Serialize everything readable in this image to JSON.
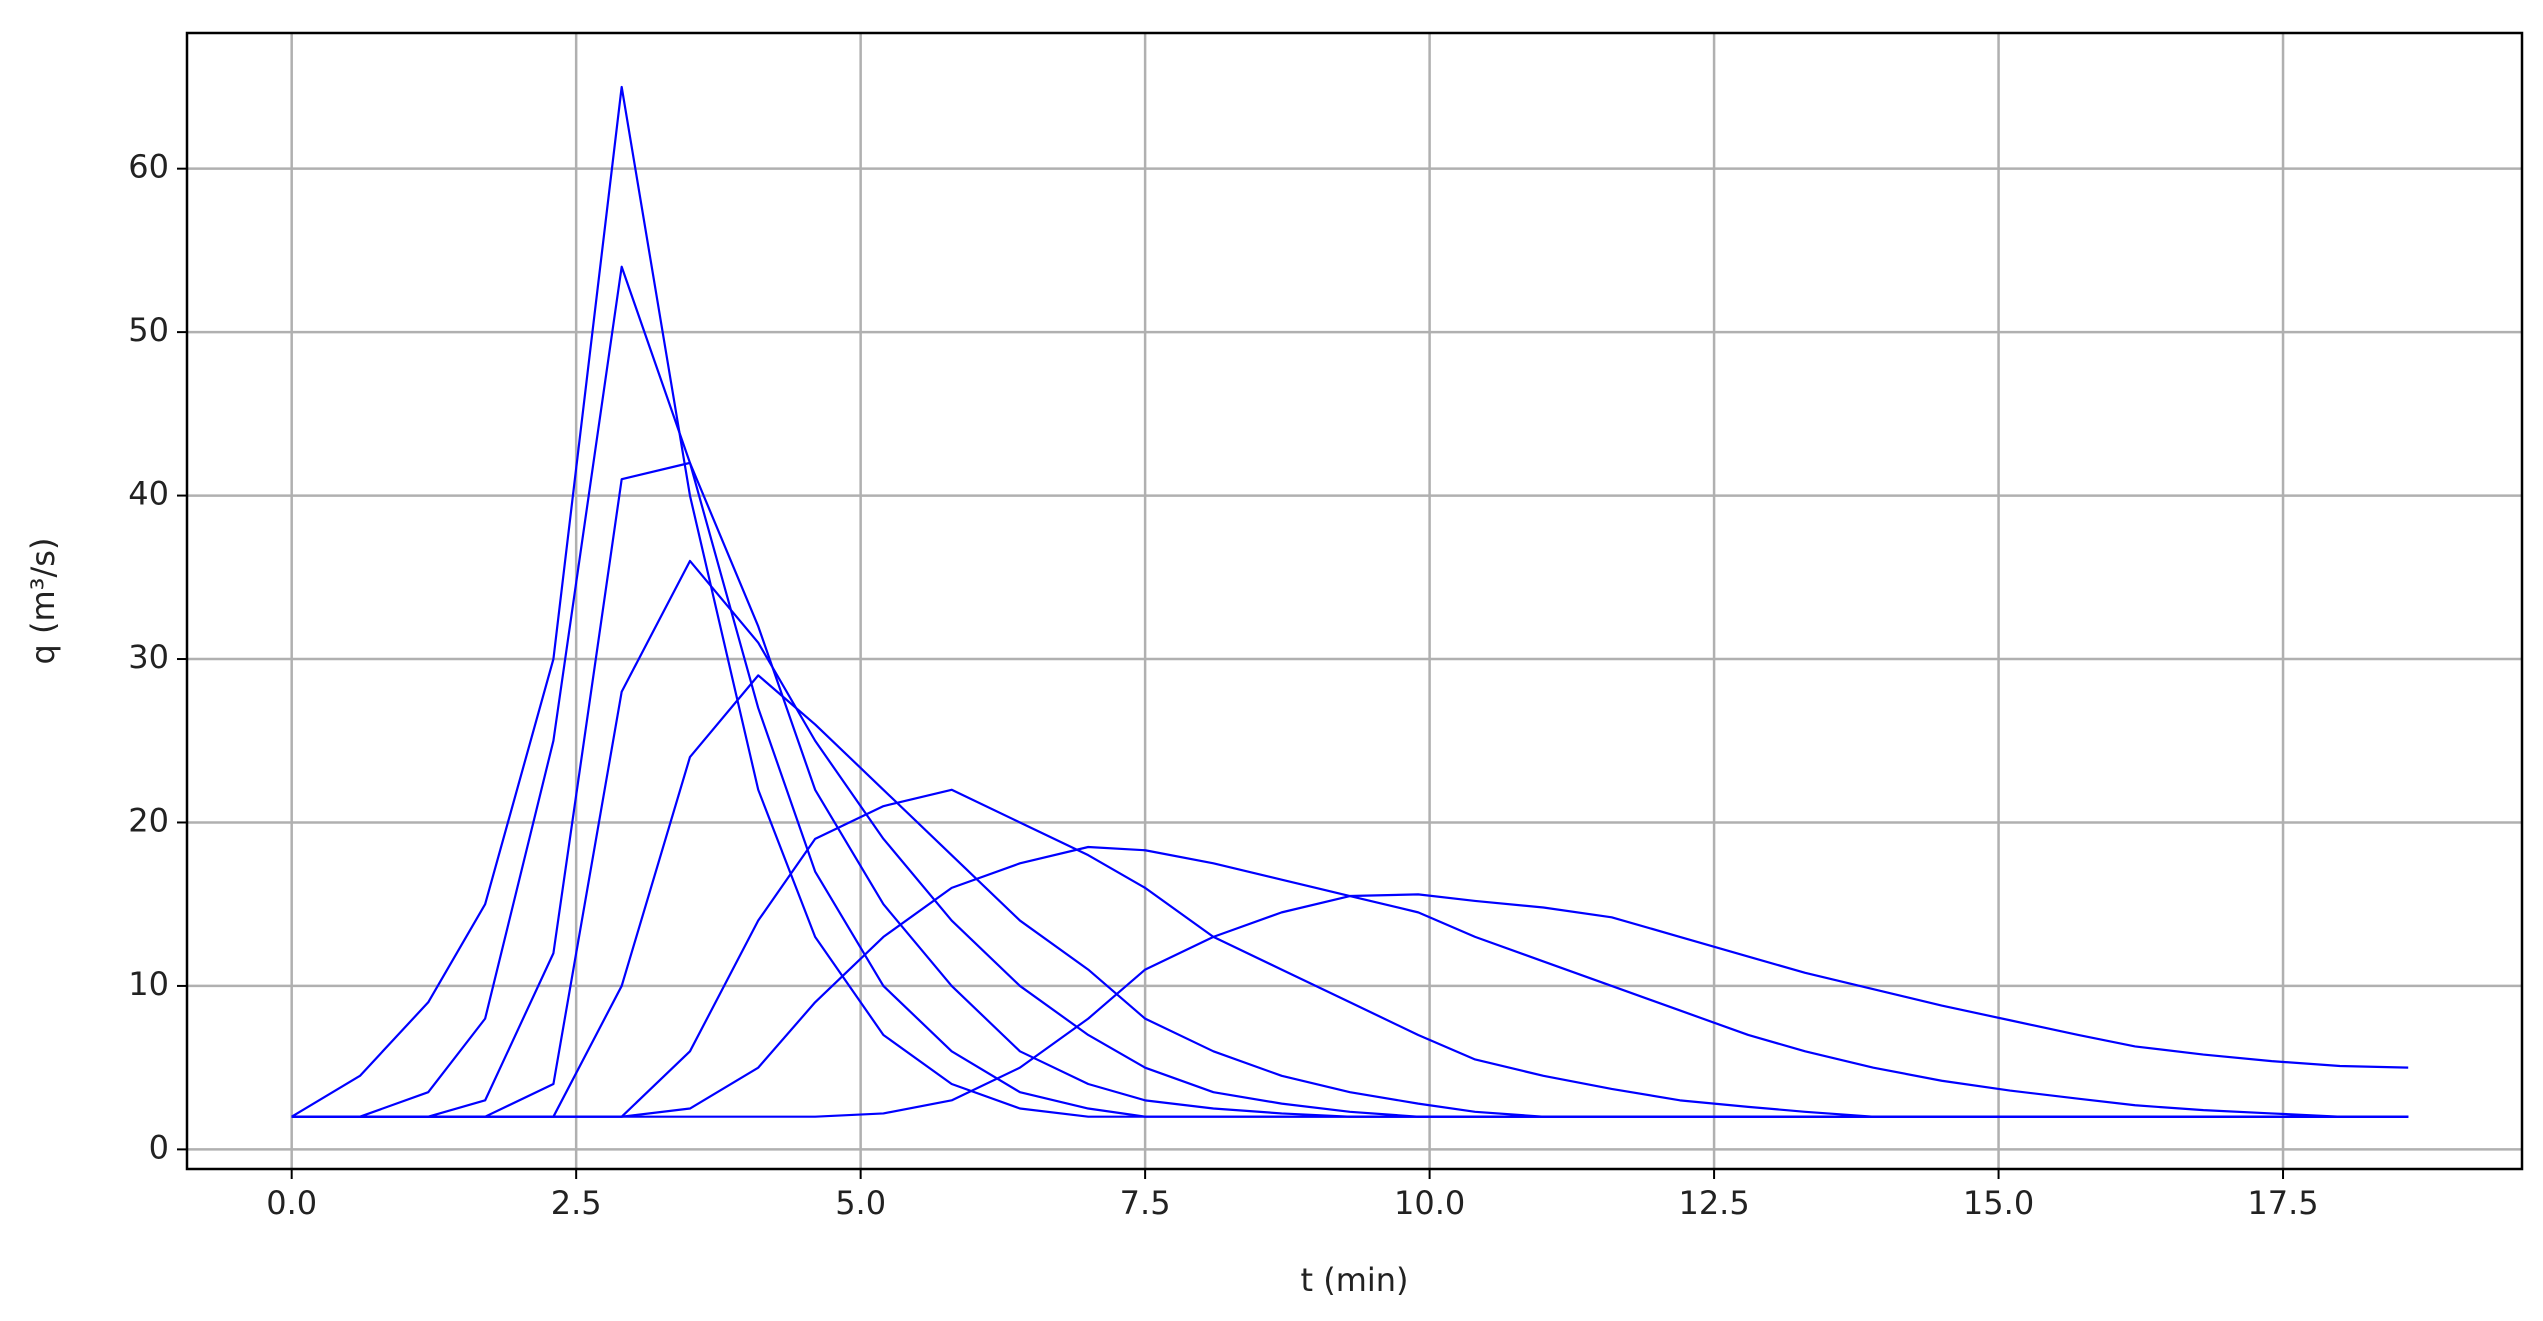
{
  "chart_data": {
    "type": "line",
    "xlabel": "t (min)",
    "ylabel": "q (m³/s)",
    "x": [
      0,
      0.6,
      1.2,
      1.7,
      2.3,
      2.9,
      3.5,
      4.1,
      4.6,
      5.2,
      5.8,
      6.4,
      7,
      7.5,
      8.1,
      8.7,
      9.3,
      9.9,
      10.4,
      11,
      11.6,
      12.2,
      12.8,
      13.3,
      13.9,
      14.5,
      15.1,
      15.7,
      16.2,
      16.8,
      17.4,
      18,
      18.6
    ],
    "series": [
      {
        "color": "#0000ff",
        "values": [
          2,
          4.5,
          9,
          15,
          30,
          65,
          40,
          22,
          13,
          7,
          4,
          2.5,
          2,
          2,
          2,
          2,
          2,
          2,
          2,
          2,
          2,
          2,
          2,
          2,
          2,
          2,
          2,
          2,
          2,
          2,
          2,
          2,
          2
        ]
      },
      {
        "color": "#0000ff",
        "values": [
          2,
          2,
          3.5,
          8,
          25,
          54,
          42,
          27,
          17,
          10,
          6,
          3.5,
          2.5,
          2,
          2,
          2,
          2,
          2,
          2,
          2,
          2,
          2,
          2,
          2,
          2,
          2,
          2,
          2,
          2,
          2,
          2,
          2,
          2
        ]
      },
      {
        "color": "#0000ff",
        "values": [
          2,
          2,
          2,
          3,
          12,
          41,
          42,
          32,
          22,
          15,
          10,
          6,
          4,
          3,
          2.5,
          2.2,
          2,
          2,
          2,
          2,
          2,
          2,
          2,
          2,
          2,
          2,
          2,
          2,
          2,
          2,
          2,
          2,
          2
        ]
      },
      {
        "color": "#0000ff",
        "values": [
          2,
          2,
          2,
          2,
          4,
          28,
          36,
          31,
          25,
          19,
          14,
          10,
          7,
          5,
          3.5,
          2.8,
          2.3,
          2,
          2,
          2,
          2,
          2,
          2,
          2,
          2,
          2,
          2,
          2,
          2,
          2,
          2,
          2,
          2
        ]
      },
      {
        "color": "#0000ff",
        "values": [
          2,
          2,
          2,
          2,
          2,
          10,
          24,
          29,
          26,
          22,
          18,
          14,
          11,
          8,
          6,
          4.5,
          3.5,
          2.8,
          2.3,
          2,
          2,
          2,
          2,
          2,
          2,
          2,
          2,
          2,
          2,
          2,
          2,
          2,
          2
        ]
      },
      {
        "color": "#0000ff",
        "values": [
          2,
          2,
          2,
          2,
          2,
          2,
          6,
          14,
          19,
          21,
          22,
          20,
          18,
          16,
          13,
          11,
          9,
          7,
          5.5,
          4.5,
          3.7,
          3,
          2.6,
          2.3,
          2,
          2,
          2,
          2,
          2,
          2,
          2,
          2,
          2
        ]
      },
      {
        "color": "#0000ff",
        "values": [
          2,
          2,
          2,
          2,
          2,
          2,
          2.5,
          5,
          9,
          13,
          16,
          17.5,
          18.5,
          18.3,
          17.5,
          16.5,
          15.5,
          14.5,
          13,
          11.5,
          10,
          8.5,
          7,
          6,
          5,
          4.2,
          3.6,
          3.1,
          2.7,
          2.4,
          2.2,
          2,
          2
        ]
      },
      {
        "color": "#0000ff",
        "values": [
          2,
          2,
          2,
          2,
          2,
          2,
          2,
          2,
          2,
          2.2,
          3,
          5,
          8,
          11,
          13,
          14.5,
          15.5,
          15.6,
          15.2,
          14.8,
          14.2,
          13,
          11.8,
          10.8,
          9.8,
          8.8,
          7.9,
          7,
          6.3,
          5.8,
          5.4,
          5.1,
          5
        ]
      }
    ],
    "xlim": [
      -0.92,
      19.6
    ],
    "ylim": [
      -1.2,
      68.3
    ],
    "xticks": [
      {
        "value": 0,
        "label": "0.0"
      },
      {
        "value": 2.5,
        "label": "2.5"
      },
      {
        "value": 5,
        "label": "5.0"
      },
      {
        "value": 7.5,
        "label": "7.5"
      },
      {
        "value": 10,
        "label": "10.0"
      },
      {
        "value": 12.5,
        "label": "12.5"
      },
      {
        "value": 15,
        "label": "15.0"
      },
      {
        "value": 17.5,
        "label": "17.5"
      }
    ],
    "yticks": [
      0,
      10,
      20,
      30,
      40,
      50,
      60
    ],
    "grid": true
  }
}
